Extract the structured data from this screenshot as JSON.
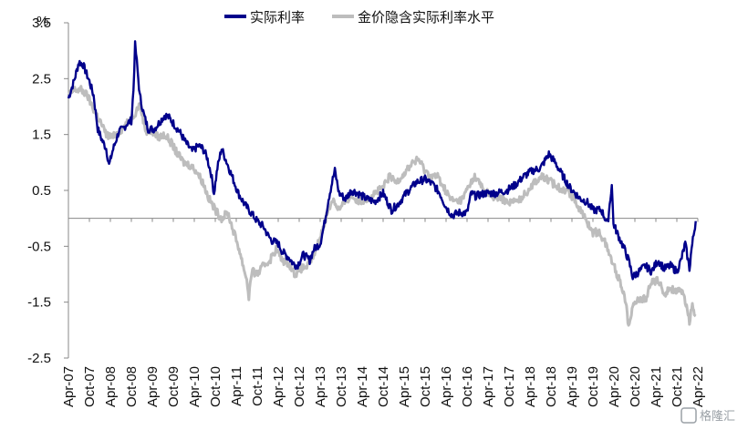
{
  "chart_data": {
    "type": "line",
    "ylabel": "%",
    "ylim": [
      -2.5,
      3.5
    ],
    "yticks": [
      "3.5",
      "2.5",
      "1.5",
      "0.5",
      "-0.5",
      "-1.5",
      "-2.5"
    ],
    "ytick_values": [
      3.5,
      2.5,
      1.5,
      0.5,
      -0.5,
      -1.5,
      -2.5
    ],
    "negative_tick_color": "#e8000b",
    "xlim": [
      2007.25,
      2022.25
    ],
    "x_tick_labels": [
      "Apr-07",
      "Oct-07",
      "Apr-08",
      "Oct-08",
      "Apr-09",
      "Oct-09",
      "Apr-10",
      "Oct-10",
      "Apr-11",
      "Oct-11",
      "Apr-12",
      "Oct-12",
      "Apr-13",
      "Oct-13",
      "Apr-14",
      "Oct-14",
      "Apr-15",
      "Oct-15",
      "Apr-16",
      "Oct-16",
      "Apr-17",
      "Oct-17",
      "Apr-18",
      "Oct-18",
      "Apr-19",
      "Oct-19",
      "Apr-20",
      "Oct-20",
      "Apr-21",
      "Oct-21",
      "Apr-22"
    ],
    "legend_position": "top-center",
    "series": [
      {
        "name": "实际利率",
        "color": "#00008b",
        "points": [
          [
            2007.25,
            2.15
          ],
          [
            2007.4,
            2.5
          ],
          [
            2007.5,
            2.8
          ],
          [
            2007.6,
            2.75
          ],
          [
            2007.75,
            2.45
          ],
          [
            2007.85,
            2.2
          ],
          [
            2007.95,
            1.6
          ],
          [
            2008.05,
            1.4
          ],
          [
            2008.15,
            1.25
          ],
          [
            2008.22,
            0.95
          ],
          [
            2008.3,
            1.2
          ],
          [
            2008.45,
            1.55
          ],
          [
            2008.55,
            1.6
          ],
          [
            2008.65,
            1.7
          ],
          [
            2008.75,
            1.75
          ],
          [
            2008.8,
            2.3
          ],
          [
            2008.84,
            3.1
          ],
          [
            2008.88,
            2.8
          ],
          [
            2008.95,
            2.2
          ],
          [
            2009.05,
            1.85
          ],
          [
            2009.15,
            1.6
          ],
          [
            2009.3,
            1.6
          ],
          [
            2009.45,
            1.75
          ],
          [
            2009.55,
            1.85
          ],
          [
            2009.65,
            1.8
          ],
          [
            2009.75,
            1.7
          ],
          [
            2009.9,
            1.55
          ],
          [
            2010.05,
            1.35
          ],
          [
            2010.2,
            1.2
          ],
          [
            2010.35,
            1.3
          ],
          [
            2010.45,
            1.25
          ],
          [
            2010.55,
            1.1
          ],
          [
            2010.65,
            0.8
          ],
          [
            2010.72,
            0.45
          ],
          [
            2010.8,
            0.9
          ],
          [
            2010.9,
            1.25
          ],
          [
            2011.0,
            1.05
          ],
          [
            2011.15,
            0.75
          ],
          [
            2011.3,
            0.45
          ],
          [
            2011.45,
            0.25
          ],
          [
            2011.6,
            0.1
          ],
          [
            2011.75,
            -0.05
          ],
          [
            2011.9,
            -0.15
          ],
          [
            2012.0,
            -0.3
          ],
          [
            2012.1,
            -0.4
          ],
          [
            2012.25,
            -0.45
          ],
          [
            2012.35,
            -0.6
          ],
          [
            2012.5,
            -0.7
          ],
          [
            2012.6,
            -0.8
          ],
          [
            2012.7,
            -0.85
          ],
          [
            2012.85,
            -0.65
          ],
          [
            2013.0,
            -0.75
          ],
          [
            2013.1,
            -0.55
          ],
          [
            2013.25,
            -0.45
          ],
          [
            2013.35,
            -0.1
          ],
          [
            2013.45,
            0.35
          ],
          [
            2013.55,
            0.7
          ],
          [
            2013.6,
            0.85
          ],
          [
            2013.7,
            0.45
          ],
          [
            2013.85,
            0.35
          ],
          [
            2014.0,
            0.5
          ],
          [
            2014.15,
            0.45
          ],
          [
            2014.35,
            0.35
          ],
          [
            2014.55,
            0.3
          ],
          [
            2014.75,
            0.45
          ],
          [
            2014.95,
            0.15
          ],
          [
            2015.1,
            0.25
          ],
          [
            2015.3,
            0.45
          ],
          [
            2015.55,
            0.65
          ],
          [
            2015.75,
            0.7
          ],
          [
            2015.95,
            0.6
          ],
          [
            2016.1,
            0.45
          ],
          [
            2016.25,
            0.2
          ],
          [
            2016.4,
            0.05
          ],
          [
            2016.55,
            0.1
          ],
          [
            2016.75,
            0.1
          ],
          [
            2016.85,
            0.45
          ],
          [
            2016.95,
            0.4
          ],
          [
            2017.2,
            0.45
          ],
          [
            2017.45,
            0.45
          ],
          [
            2017.7,
            0.5
          ],
          [
            2017.9,
            0.6
          ],
          [
            2018.1,
            0.75
          ],
          [
            2018.3,
            0.85
          ],
          [
            2018.5,
            0.9
          ],
          [
            2018.7,
            1.15
          ],
          [
            2018.85,
            1.0
          ],
          [
            2019.0,
            0.8
          ],
          [
            2019.2,
            0.55
          ],
          [
            2019.45,
            0.35
          ],
          [
            2019.6,
            0.3
          ],
          [
            2019.75,
            0.15
          ],
          [
            2019.95,
            0.15
          ],
          [
            2020.1,
            -0.1
          ],
          [
            2020.2,
            0.6
          ],
          [
            2020.24,
            -0.1
          ],
          [
            2020.35,
            -0.3
          ],
          [
            2020.5,
            -0.55
          ],
          [
            2020.6,
            -0.75
          ],
          [
            2020.7,
            -1.05
          ],
          [
            2020.85,
            -0.95
          ],
          [
            2021.0,
            -0.85
          ],
          [
            2021.15,
            -0.95
          ],
          [
            2021.3,
            -0.75
          ],
          [
            2021.45,
            -0.9
          ],
          [
            2021.6,
            -0.85
          ],
          [
            2021.75,
            -0.95
          ],
          [
            2021.85,
            -0.75
          ],
          [
            2021.95,
            -0.45
          ],
          [
            2022.05,
            -0.9
          ],
          [
            2022.1,
            -0.55
          ],
          [
            2022.2,
            -0.05
          ]
        ]
      },
      {
        "name": "金价隐含实际利率水平",
        "color": "#bdbdbd",
        "points": [
          [
            2007.25,
            2.2
          ],
          [
            2007.4,
            2.3
          ],
          [
            2007.55,
            2.3
          ],
          [
            2007.7,
            2.2
          ],
          [
            2007.85,
            1.95
          ],
          [
            2008.0,
            1.75
          ],
          [
            2008.15,
            1.5
          ],
          [
            2008.3,
            1.45
          ],
          [
            2008.45,
            1.55
          ],
          [
            2008.6,
            1.65
          ],
          [
            2008.75,
            1.8
          ],
          [
            2008.85,
            1.9
          ],
          [
            2008.95,
            2.05
          ],
          [
            2009.1,
            1.55
          ],
          [
            2009.25,
            1.55
          ],
          [
            2009.4,
            1.45
          ],
          [
            2009.55,
            1.5
          ],
          [
            2009.7,
            1.35
          ],
          [
            2009.85,
            1.15
          ],
          [
            2010.0,
            1.0
          ],
          [
            2010.15,
            0.95
          ],
          [
            2010.3,
            0.85
          ],
          [
            2010.45,
            0.65
          ],
          [
            2010.6,
            0.35
          ],
          [
            2010.75,
            0.15
          ],
          [
            2010.9,
            0.0
          ],
          [
            2011.05,
            0.1
          ],
          [
            2011.15,
            -0.15
          ],
          [
            2011.3,
            -0.5
          ],
          [
            2011.4,
            -0.8
          ],
          [
            2011.5,
            -1.1
          ],
          [
            2011.55,
            -1.4
          ],
          [
            2011.62,
            -0.95
          ],
          [
            2011.75,
            -1.0
          ],
          [
            2011.9,
            -0.85
          ],
          [
            2012.05,
            -0.75
          ],
          [
            2012.2,
            -0.55
          ],
          [
            2012.35,
            -0.75
          ],
          [
            2012.5,
            -0.8
          ],
          [
            2012.65,
            -1.0
          ],
          [
            2012.8,
            -0.9
          ],
          [
            2012.95,
            -0.85
          ],
          [
            2013.1,
            -0.65
          ],
          [
            2013.25,
            -0.35
          ],
          [
            2013.4,
            0.05
          ],
          [
            2013.55,
            0.35
          ],
          [
            2013.7,
            0.15
          ],
          [
            2013.85,
            0.3
          ],
          [
            2014.0,
            0.4
          ],
          [
            2014.15,
            0.3
          ],
          [
            2014.35,
            0.35
          ],
          [
            2014.55,
            0.45
          ],
          [
            2014.75,
            0.55
          ],
          [
            2014.9,
            0.75
          ],
          [
            2015.05,
            0.65
          ],
          [
            2015.25,
            0.8
          ],
          [
            2015.45,
            1.0
          ],
          [
            2015.6,
            1.05
          ],
          [
            2015.75,
            0.85
          ],
          [
            2015.9,
            0.75
          ],
          [
            2016.05,
            0.75
          ],
          [
            2016.2,
            0.55
          ],
          [
            2016.35,
            0.35
          ],
          [
            2016.5,
            0.3
          ],
          [
            2016.65,
            0.35
          ],
          [
            2016.8,
            0.6
          ],
          [
            2016.95,
            0.75
          ],
          [
            2017.15,
            0.5
          ],
          [
            2017.35,
            0.4
          ],
          [
            2017.55,
            0.35
          ],
          [
            2017.75,
            0.3
          ],
          [
            2017.95,
            0.3
          ],
          [
            2018.15,
            0.45
          ],
          [
            2018.35,
            0.65
          ],
          [
            2018.55,
            0.75
          ],
          [
            2018.75,
            0.65
          ],
          [
            2018.95,
            0.55
          ],
          [
            2019.15,
            0.5
          ],
          [
            2019.3,
            0.35
          ],
          [
            2019.45,
            0.15
          ],
          [
            2019.6,
            -0.05
          ],
          [
            2019.75,
            -0.25
          ],
          [
            2019.9,
            -0.25
          ],
          [
            2020.05,
            -0.45
          ],
          [
            2020.2,
            -0.75
          ],
          [
            2020.35,
            -1.05
          ],
          [
            2020.5,
            -1.35
          ],
          [
            2020.6,
            -1.9
          ],
          [
            2020.7,
            -1.55
          ],
          [
            2020.85,
            -1.45
          ],
          [
            2021.0,
            -1.45
          ],
          [
            2021.15,
            -1.15
          ],
          [
            2021.3,
            -1.1
          ],
          [
            2021.45,
            -1.35
          ],
          [
            2021.6,
            -1.25
          ],
          [
            2021.75,
            -1.3
          ],
          [
            2021.9,
            -1.35
          ],
          [
            2022.0,
            -1.6
          ],
          [
            2022.05,
            -1.85
          ],
          [
            2022.12,
            -1.55
          ],
          [
            2022.2,
            -1.75
          ]
        ]
      }
    ]
  },
  "watermark": "格隆汇"
}
